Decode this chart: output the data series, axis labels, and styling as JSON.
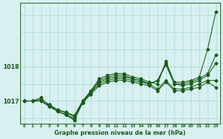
{
  "xlabel": "Graphe pression niveau de la mer (hPa)",
  "bg_color": "#d8f0f0",
  "grid_color": "#a8d8d8",
  "line_color": "#1a5c1a",
  "hours": [
    0,
    1,
    2,
    3,
    4,
    5,
    6,
    7,
    8,
    9,
    10,
    11,
    12,
    13,
    14,
    15,
    16,
    17,
    18,
    19,
    20,
    21,
    22,
    23
  ],
  "series": [
    [
      1017.0,
      1017.0,
      1017.0,
      1016.85,
      1016.75,
      1016.65,
      1016.55,
      1016.95,
      1017.2,
      1017.45,
      1017.55,
      1017.6,
      1017.6,
      1017.55,
      1017.5,
      1017.45,
      1017.3,
      1017.55,
      1017.3,
      1017.3,
      1017.35,
      1017.4,
      1017.55,
      1017.4
    ],
    [
      1017.0,
      1017.0,
      1017.05,
      1016.9,
      1016.75,
      1016.68,
      1016.58,
      1017.0,
      1017.25,
      1017.5,
      1017.6,
      1017.65,
      1017.65,
      1017.6,
      1017.55,
      1017.5,
      1017.35,
      1017.6,
      1017.35,
      1017.35,
      1017.4,
      1017.5,
      1017.6,
      1017.6
    ],
    [
      1017.0,
      1017.0,
      1017.1,
      1016.85,
      1016.7,
      1016.6,
      1016.5,
      1017.0,
      1017.3,
      1017.55,
      1017.65,
      1017.7,
      1017.7,
      1017.65,
      1017.6,
      1017.5,
      1017.6,
      1018.05,
      1017.5,
      1017.45,
      1017.5,
      1017.6,
      1017.75,
      1018.1
    ],
    [
      1017.0,
      1017.0,
      1017.0,
      1016.85,
      1016.7,
      1016.6,
      1016.45,
      1016.95,
      1017.25,
      1017.6,
      1017.7,
      1017.75,
      1017.75,
      1017.65,
      1017.6,
      1017.5,
      1017.6,
      1018.1,
      1017.5,
      1017.5,
      1017.55,
      1017.65,
      1017.8,
      1018.35
    ],
    [
      1017.0,
      1017.0,
      1017.0,
      1016.85,
      1016.7,
      1016.6,
      1016.45,
      1016.95,
      1017.3,
      1017.65,
      1017.75,
      1017.8,
      1017.8,
      1017.7,
      1017.65,
      1017.55,
      1017.5,
      1018.15,
      1017.55,
      1017.55,
      1017.6,
      1017.7,
      1018.5,
      1019.6
    ]
  ],
  "ylim": [
    1016.35,
    1019.85
  ],
  "yticks": [
    1017.0,
    1018.0
  ],
  "xlim": [
    -0.5,
    23.5
  ],
  "xticks": [
    0,
    1,
    2,
    3,
    4,
    5,
    6,
    7,
    8,
    9,
    10,
    11,
    12,
    13,
    14,
    15,
    16,
    17,
    18,
    19,
    20,
    21,
    22,
    23
  ],
  "hgrid_vals": [
    1016.5,
    1017.0,
    1017.5,
    1018.0,
    1018.5,
    1019.0,
    1019.5
  ]
}
